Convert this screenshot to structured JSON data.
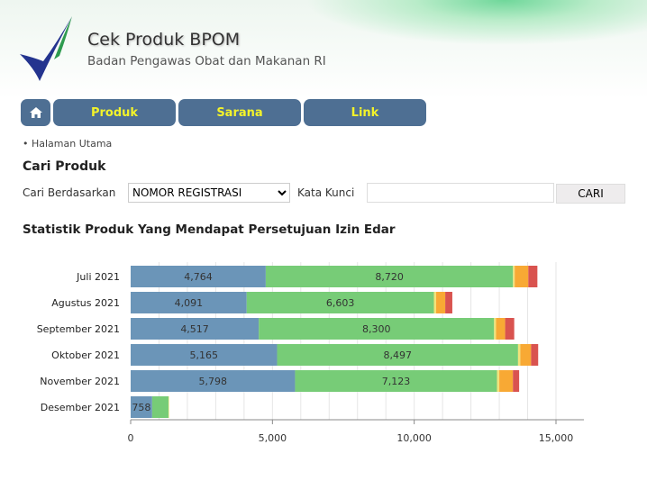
{
  "header": {
    "title": "Cek Produk BPOM",
    "subtitle": "Badan Pengawas Obat dan Makanan RI"
  },
  "nav": {
    "home_icon": "home-icon",
    "items": [
      {
        "label": "Produk"
      },
      {
        "label": "Sarana"
      },
      {
        "label": "Link"
      }
    ]
  },
  "breadcrumb": "• Halaman Utama",
  "search": {
    "heading": "Cari Produk",
    "by_label": "Cari Berdasarkan",
    "by_value": "NOMOR REGISTRASI",
    "keyword_label": "Kata Kunci",
    "keyword_value": "",
    "button": "CARI"
  },
  "chart_heading": "Statistik Produk Yang Mendapat Persetujuan Izin Edar",
  "chart_data": {
    "type": "bar",
    "orientation": "horizontal",
    "stacked": true,
    "categories": [
      "Juli 2021",
      "Agustus 2021",
      "September 2021",
      "Oktober 2021",
      "November 2021",
      "Desember 2021"
    ],
    "series": [
      {
        "name": "series1",
        "color": "#6b95b8",
        "values": [
          4764,
          4091,
          4517,
          5165,
          5798,
          758
        ],
        "labels": [
          "4,764",
          "4,091",
          "4,517",
          "5,165",
          "5,798",
          "758"
        ]
      },
      {
        "name": "series2",
        "color": "#77cc77",
        "values": [
          8720,
          6603,
          8300,
          8497,
          7123,
          576
        ],
        "labels": [
          "8,720",
          "6,603",
          "8,300",
          "8,497",
          "7,123",
          ""
        ]
      },
      {
        "name": "series3",
        "color": "#f2e27a",
        "values": [
          60,
          80,
          70,
          80,
          80,
          20
        ]
      },
      {
        "name": "series4",
        "color": "#f8a934",
        "values": [
          480,
          320,
          320,
          380,
          480,
          0
        ]
      },
      {
        "name": "series5",
        "color": "#d9534f",
        "values": [
          320,
          250,
          320,
          250,
          220,
          0
        ]
      }
    ],
    "xlim": [
      0,
      16000
    ],
    "xticks": [
      0,
      5000,
      10000,
      15000
    ],
    "xtick_labels": [
      "0",
      "5,000",
      "10,000",
      "15,000"
    ],
    "grid": true
  }
}
